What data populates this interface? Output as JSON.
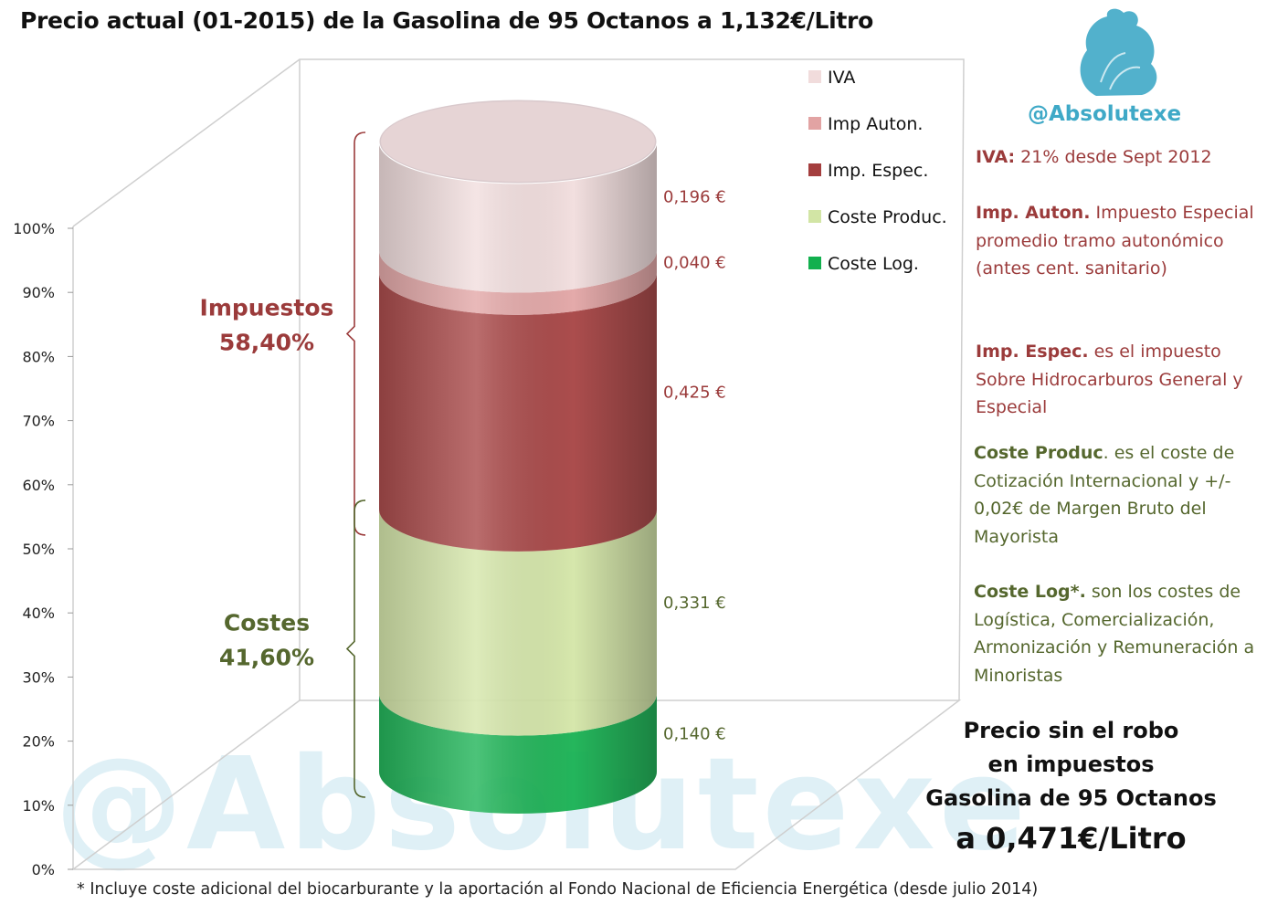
{
  "title": "Precio actual (01-2015) de la Gasolina de 95 Octanos a 1,132€/Litro",
  "brand": "@Absolutexe",
  "watermark": "@Absolutexe",
  "colors": {
    "IVA": "#f1dcdc",
    "Imp Auton.": "#e2a3a3",
    "Imp. Espec.": "#a43e3e",
    "Coste Produc.": "#d2e5a5",
    "Coste Log.": "#12b04e",
    "tax_text": "#9b3b3b",
    "cost_text": "#55672e",
    "brand": "#3fa9c7"
  },
  "chart_data": {
    "type": "bar",
    "stacked": true,
    "style": "3d-cylinder",
    "categories": [
      ""
    ],
    "ylim": [
      0,
      100
    ],
    "yticks": [
      "0%",
      "10%",
      "20%",
      "30%",
      "40%",
      "50%",
      "60%",
      "70%",
      "80%",
      "90%",
      "100%"
    ],
    "legend_position": "top-right",
    "series": [
      {
        "name": "Coste Log.",
        "value": 0.14,
        "label": "0,140 €",
        "group": "cost"
      },
      {
        "name": "Coste Produc.",
        "value": 0.331,
        "label": "0,331 €",
        "group": "cost"
      },
      {
        "name": "Imp. Espec.",
        "value": 0.425,
        "label": "0,425 €",
        "group": "tax"
      },
      {
        "name": "Imp Auton.",
        "value": 0.04,
        "label": "0,040 €",
        "group": "tax"
      },
      {
        "name": "IVA",
        "value": 0.196,
        "label": "0,196 €",
        "group": "tax"
      }
    ],
    "legend": [
      "IVA",
      "Imp Auton.",
      "Imp. Espec.",
      "Coste Produc.",
      "Coste Log."
    ],
    "groups": {
      "tax": {
        "label": "Impuestos",
        "percent": "58,40%"
      },
      "cost": {
        "label": "Costes",
        "percent": "41,60%"
      }
    }
  },
  "notes": {
    "iva": {
      "bold": "IVA:",
      "text": " 21% desde Sept 2012"
    },
    "auton": {
      "bold": "Imp. Auton.",
      "text": " Impuesto Especial promedio tramo autonómico (antes cent. sanitario)"
    },
    "espec": {
      "bold": "Imp. Espec.",
      "text": " es el impuesto Sobre Hidrocarburos General y Especial"
    },
    "produc": {
      "bold": "Coste Produc",
      "text": ". es el coste de Cotización Internacional y +/- 0,02€ de Margen Bruto del Mayorista"
    },
    "log": {
      "bold": "Coste Log*.",
      "text": " son los costes de Logística, Comercialización, Armonización y Remuneración a Minoristas"
    }
  },
  "price_box": {
    "line1": "Precio sin el robo",
    "line2": "en impuestos",
    "line3": "Gasolina de 95 Octanos",
    "line4": "a 0,471€/Litro"
  },
  "footnote": "* Incluye coste adicional del biocarburante y la aportación al Fondo Nacional de Eficiencia Energética  (desde julio 2014)"
}
